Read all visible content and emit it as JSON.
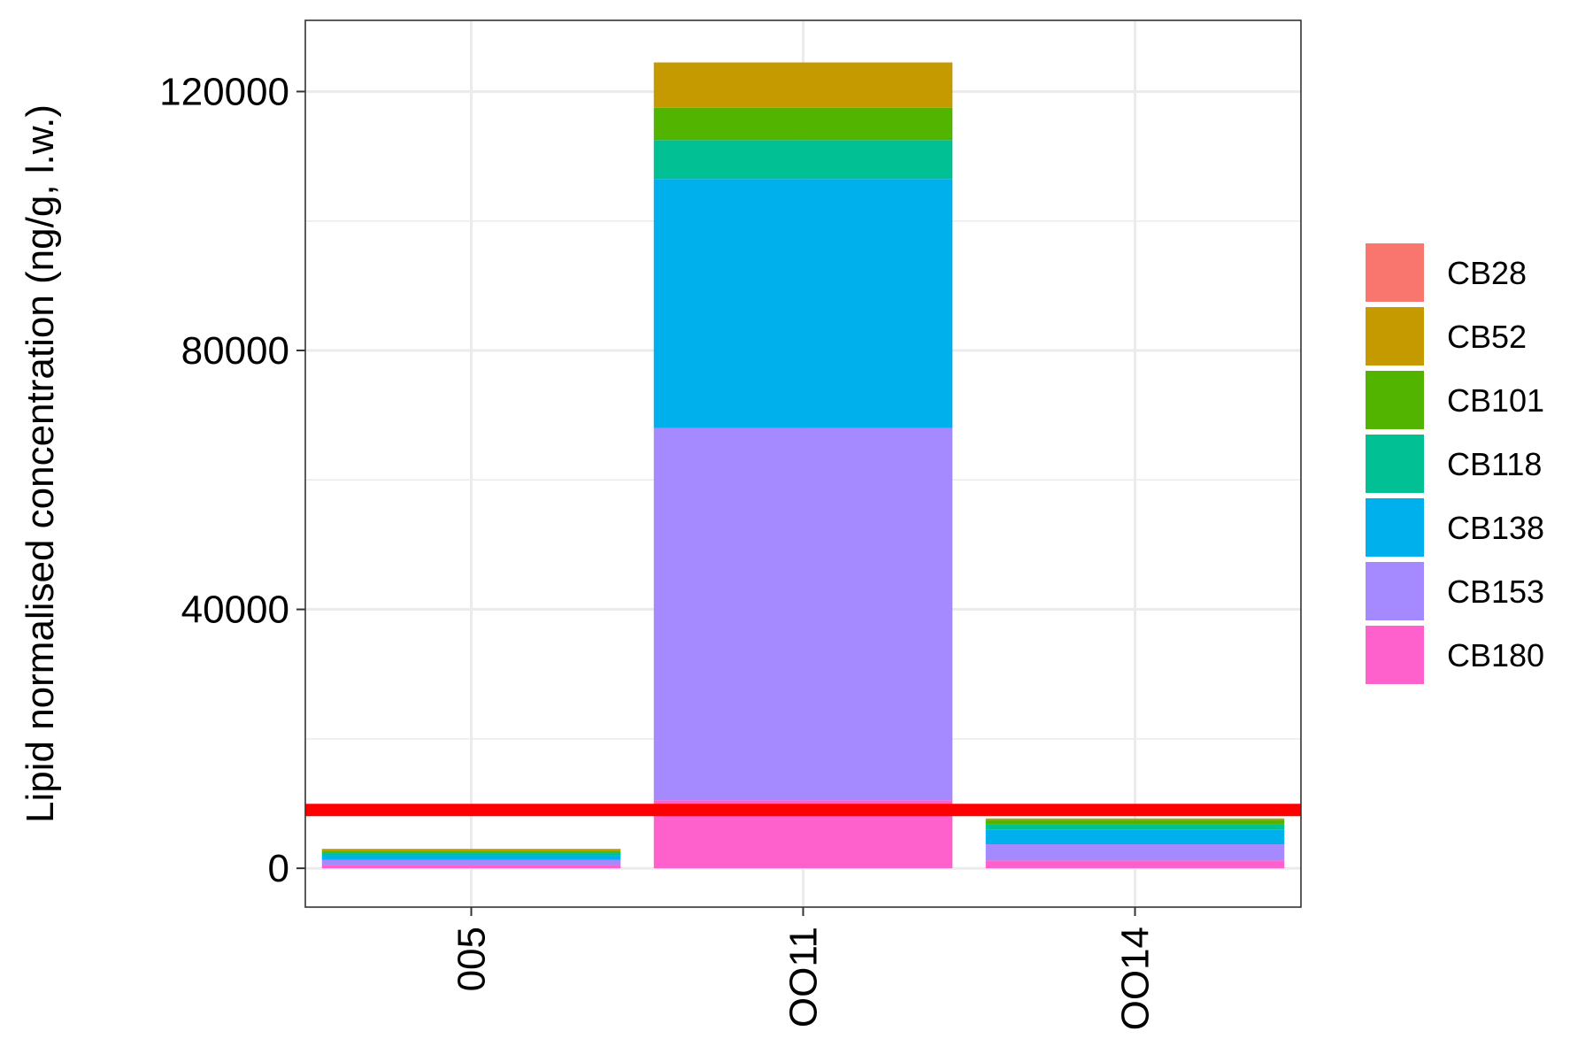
{
  "chart_data": {
    "type": "bar",
    "stacked": true,
    "title": "",
    "xlabel": "",
    "ylabel": "Lipid normalised concentration (ng/g, l.w.)",
    "categories": [
      "005",
      "OO11",
      "OO14"
    ],
    "ylim": [
      -6000,
      131000
    ],
    "yticks": [
      0,
      40000,
      80000,
      120000
    ],
    "ytick_labels": [
      "0",
      "40000",
      "80000",
      "120000"
    ],
    "grid": true,
    "legend_position": "right",
    "threshold_line": {
      "value": 9000,
      "color": "#FF0000"
    },
    "series": [
      {
        "name": "CB180",
        "color": "#FF61CC",
        "values": [
          500,
          10500,
          1200
        ]
      },
      {
        "name": "CB153",
        "color": "#A58AFF",
        "values": [
          800,
          57500,
          2500
        ]
      },
      {
        "name": "CB138",
        "color": "#00B0EC",
        "values": [
          700,
          38500,
          2300
        ]
      },
      {
        "name": "CB118",
        "color": "#00C094",
        "values": [
          400,
          6000,
          800
        ]
      },
      {
        "name": "CB101",
        "color": "#53B400",
        "values": [
          300,
          5000,
          700
        ]
      },
      {
        "name": "CB52",
        "color": "#C49A00",
        "values": [
          300,
          7000,
          200
        ]
      },
      {
        "name": "CB28",
        "color": "#F8766D",
        "values": [
          0,
          0,
          0
        ]
      }
    ],
    "legend": [
      "CB28",
      "CB52",
      "CB101",
      "CB118",
      "CB138",
      "CB153",
      "CB180"
    ]
  }
}
